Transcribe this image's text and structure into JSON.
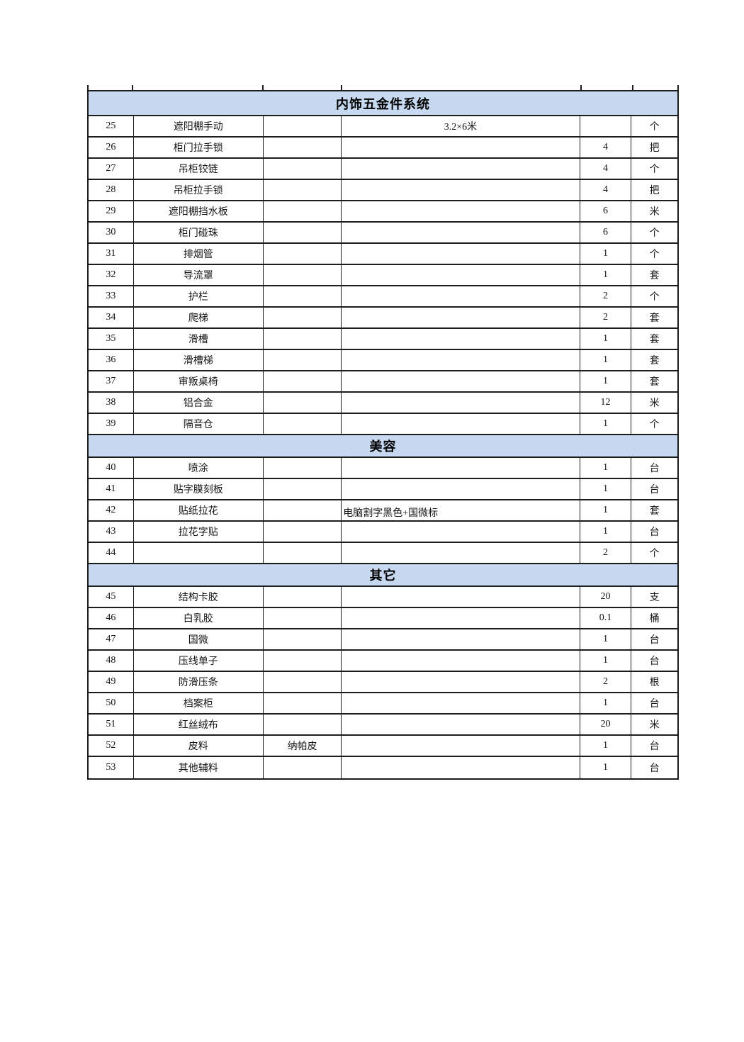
{
  "table": {
    "header_bg": "#c6d9f1",
    "border_color": "#1c1c1c",
    "sections": [
      {
        "title": "内饰五金件系统",
        "rows": [
          {
            "no": "25",
            "name": "遮阳棚手动",
            "spec": "",
            "desc": "3.2×6米",
            "desc_align": "center",
            "qty": "",
            "unit": "个"
          },
          {
            "no": "26",
            "name": "柜门拉手锁",
            "spec": "",
            "desc": "",
            "desc_align": "center",
            "qty": "4",
            "unit": "把"
          },
          {
            "no": "27",
            "name": "吊柜铰链",
            "spec": "",
            "desc": "",
            "desc_align": "center",
            "qty": "4",
            "unit": "个"
          },
          {
            "no": "28",
            "name": "吊柜拉手锁",
            "spec": "",
            "desc": "",
            "desc_align": "center",
            "qty": "4",
            "unit": "把"
          },
          {
            "no": "29",
            "name": "遮阳棚挡水板",
            "spec": "",
            "desc": "",
            "desc_align": "center",
            "qty": "6",
            "unit": "米"
          },
          {
            "no": "30",
            "name": "柜门碰珠",
            "spec": "",
            "desc": "",
            "desc_align": "center",
            "qty": "6",
            "unit": "个"
          },
          {
            "no": "31",
            "name": "排烟管",
            "spec": "",
            "desc": "",
            "desc_align": "center",
            "qty": "1",
            "unit": "个"
          },
          {
            "no": "32",
            "name": "导流罩",
            "spec": "",
            "desc": "",
            "desc_align": "center",
            "qty": "1",
            "unit": "套"
          },
          {
            "no": "33",
            "name": "护栏",
            "spec": "",
            "desc": "",
            "desc_align": "center",
            "qty": "2",
            "unit": "个"
          },
          {
            "no": "34",
            "name": "爬梯",
            "spec": "",
            "desc": "",
            "desc_align": "center",
            "qty": "2",
            "unit": "套"
          },
          {
            "no": "35",
            "name": "滑槽",
            "spec": "",
            "desc": "",
            "desc_align": "center",
            "qty": "1",
            "unit": "套"
          },
          {
            "no": "36",
            "name": "滑槽梯",
            "spec": "",
            "desc": "",
            "desc_align": "center",
            "qty": "1",
            "unit": "套"
          },
          {
            "no": "37",
            "name": "审叛桌椅",
            "spec": "",
            "desc": "",
            "desc_align": "center",
            "qty": "1",
            "unit": "套"
          },
          {
            "no": "38",
            "name": "铝合金",
            "spec": "",
            "desc": "",
            "desc_align": "center",
            "qty": "12",
            "unit": "米"
          },
          {
            "no": "39",
            "name": "隔音仓",
            "spec": "",
            "desc": "",
            "desc_align": "center",
            "qty": "1",
            "unit": "个"
          }
        ]
      },
      {
        "title": "美容",
        "rows": [
          {
            "no": "40",
            "name": "喷涂",
            "spec": "",
            "desc": "",
            "desc_align": "center",
            "qty": "1",
            "unit": "台"
          },
          {
            "no": "41",
            "name": "贴字膜刻板",
            "spec": "",
            "desc": "",
            "desc_align": "center",
            "qty": "1",
            "unit": "台"
          },
          {
            "no": "42",
            "name": "贴纸拉花",
            "spec": "",
            "desc": "电脑割字黑色+国微标",
            "desc_align": "left",
            "qty": "1",
            "unit": "套"
          },
          {
            "no": "43",
            "name": "拉花字贴",
            "spec": "",
            "desc": "",
            "desc_align": "center",
            "qty": "1",
            "unit": "台"
          },
          {
            "no": "44",
            "name": "",
            "spec": "",
            "desc": "",
            "desc_align": "center",
            "qty": "2",
            "unit": "个"
          }
        ]
      },
      {
        "title": "其它",
        "rows": [
          {
            "no": "45",
            "name": "结构卡胶",
            "spec": "",
            "desc": "",
            "desc_align": "center",
            "qty": "20",
            "unit": "支"
          },
          {
            "no": "46",
            "name": "白乳胶",
            "spec": "",
            "desc": "",
            "desc_align": "center",
            "qty": "0.1",
            "unit": "桶"
          },
          {
            "no": "47",
            "name": "国微",
            "spec": "",
            "desc": "",
            "desc_align": "center",
            "qty": "1",
            "unit": "台"
          },
          {
            "no": "48",
            "name": "压线单子",
            "spec": "",
            "desc": "",
            "desc_align": "center",
            "qty": "1",
            "unit": "台"
          },
          {
            "no": "49",
            "name": "防滑压条",
            "spec": "",
            "desc": "",
            "desc_align": "center",
            "qty": "2",
            "unit": "根"
          },
          {
            "no": "50",
            "name": "档案柜",
            "spec": "",
            "desc": "",
            "desc_align": "center",
            "qty": "1",
            "unit": "台"
          },
          {
            "no": "51",
            "name": "红丝绒布",
            "spec": "",
            "desc": "",
            "desc_align": "center",
            "qty": "20",
            "unit": "米"
          },
          {
            "no": "52",
            "name": "皮料",
            "spec": "纳帕皮",
            "desc": "",
            "desc_align": "center",
            "qty": "1",
            "unit": "台"
          },
          {
            "no": "53",
            "name": "其他辅料",
            "spec": "",
            "desc": "",
            "desc_align": "center",
            "qty": "1",
            "unit": "台"
          }
        ]
      }
    ]
  }
}
